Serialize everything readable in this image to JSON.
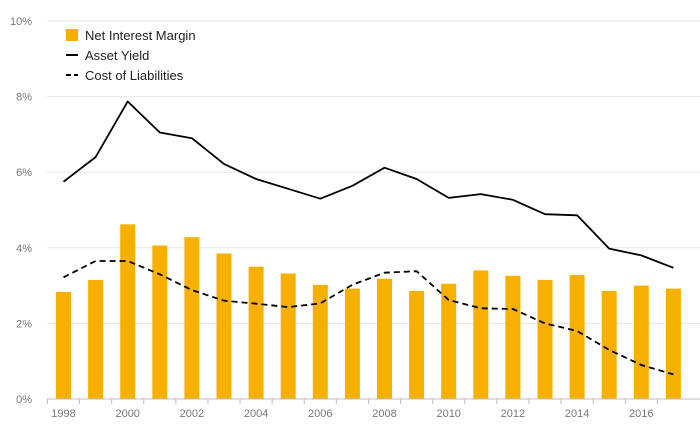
{
  "chart_data": {
    "type": "bar",
    "title": "",
    "xlabel": "",
    "ylabel": "",
    "x": [
      1998,
      1999,
      2000,
      2001,
      2002,
      2003,
      2004,
      2005,
      2006,
      2007,
      2008,
      2009,
      2010,
      2011,
      2012,
      2013,
      2014,
      2015,
      2016,
      2017
    ],
    "x_tick_labels": [
      "1998",
      "2000",
      "2002",
      "2004",
      "2006",
      "2008",
      "2010",
      "2012",
      "2014",
      "2016"
    ],
    "y_tick_labels": [
      "0%",
      "2%",
      "4%",
      "6%",
      "8%",
      "10%"
    ],
    "ylim": [
      0,
      10
    ],
    "grid": true,
    "legend_position": "top-left",
    "series": [
      {
        "name": "Net Interest Margin",
        "kind": "bar",
        "color": "#F7B000",
        "values": [
          2.83,
          3.15,
          4.62,
          4.06,
          4.28,
          3.85,
          3.5,
          3.32,
          3.02,
          2.92,
          3.18,
          2.86,
          3.05,
          3.4,
          3.26,
          3.15,
          3.28,
          2.86,
          3.0,
          2.92
        ]
      },
      {
        "name": "Asset Yield",
        "kind": "line",
        "style": "solid",
        "color": "#000000",
        "values": [
          5.75,
          6.4,
          7.87,
          7.05,
          6.9,
          6.22,
          5.82,
          5.56,
          5.3,
          5.64,
          6.12,
          5.82,
          5.32,
          5.42,
          5.27,
          4.89,
          4.86,
          3.98,
          3.8,
          3.47
        ]
      },
      {
        "name": "Cost of Liabilities",
        "kind": "line",
        "style": "dashed",
        "color": "#000000",
        "values": [
          3.22,
          3.65,
          3.65,
          3.3,
          2.88,
          2.6,
          2.52,
          2.43,
          2.53,
          3.02,
          3.34,
          3.38,
          2.62,
          2.4,
          2.38,
          2.0,
          1.8,
          1.3,
          0.9,
          0.65
        ]
      }
    ]
  }
}
